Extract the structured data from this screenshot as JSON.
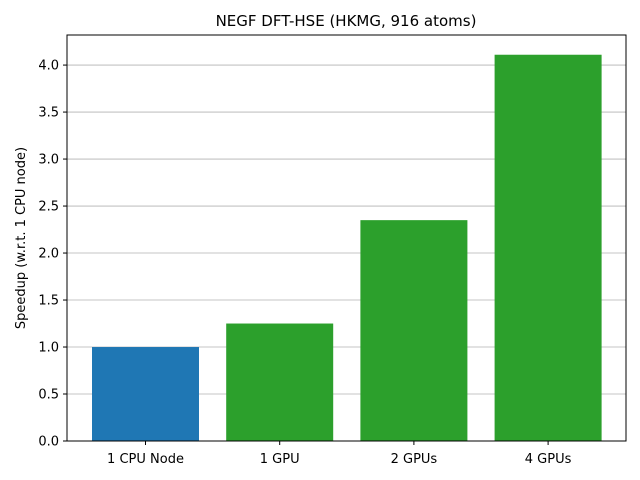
{
  "chart_data": {
    "type": "bar",
    "title": "NEGF DFT-HSE (HKMG, 916 atoms)",
    "xlabel": "",
    "ylabel": "Speedup (w.r.t. 1 CPU node)",
    "categories": [
      "1 CPU Node",
      "1 GPU",
      "2 GPUs",
      "4 GPUs"
    ],
    "values": [
      1.0,
      1.25,
      2.35,
      4.11
    ],
    "bar_colors": [
      "#1f77b4",
      "#2ca02c",
      "#2ca02c",
      "#2ca02c"
    ],
    "ylim": [
      0,
      4.32
    ],
    "yticks": [
      "0.0",
      "0.5",
      "1.0",
      "1.5",
      "2.0",
      "2.5",
      "3.0",
      "3.5",
      "4.0"
    ],
    "grid": "y",
    "legend": "none"
  }
}
